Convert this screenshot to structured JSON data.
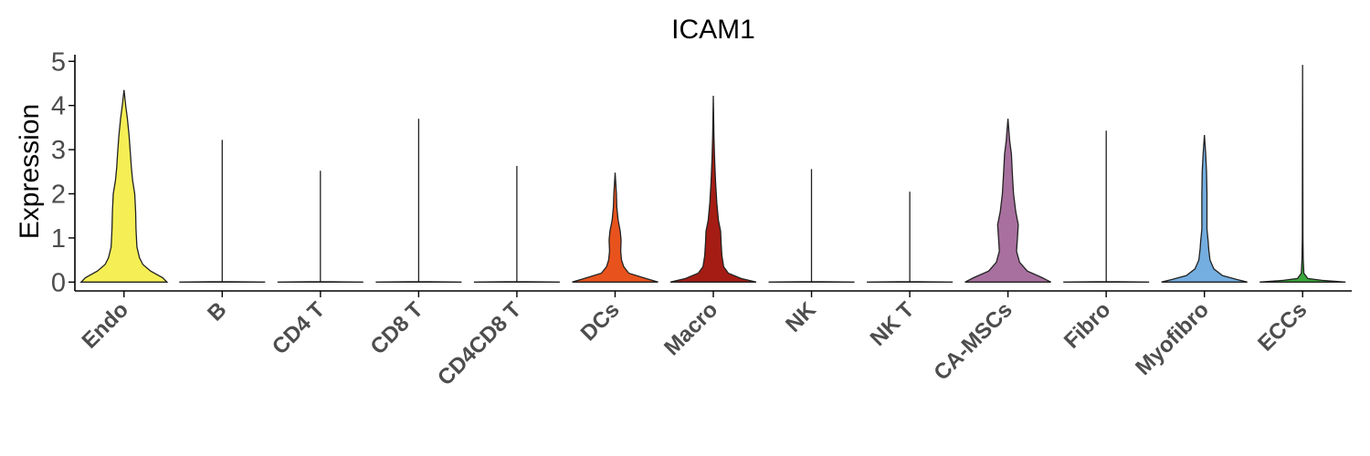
{
  "chart_data": {
    "type": "violin",
    "title": "ICAM1",
    "xlabel": "",
    "ylabel": "Expression",
    "ylim": [
      -0.2,
      5.15
    ],
    "yticks": [
      "0",
      "1",
      "2",
      "3",
      "4",
      "5"
    ],
    "grid": false,
    "legend": "none",
    "categories": [
      "Endo",
      "B",
      "CD4 T",
      "CD8 T",
      "CD4CD8 T",
      "DCs",
      "Macro",
      "NK",
      "NK T",
      "CA-MSCs",
      "Fibro",
      "Myofibro",
      "ECCs"
    ],
    "series": [
      {
        "max": 4.35,
        "color": "#f5ef55",
        "profile": [
          [
            0,
            1.0
          ],
          [
            0.1,
            0.9
          ],
          [
            0.25,
            0.62
          ],
          [
            0.4,
            0.44
          ],
          [
            0.55,
            0.36
          ],
          [
            0.8,
            0.3
          ],
          [
            1.2,
            0.28
          ],
          [
            1.6,
            0.27
          ],
          [
            2.0,
            0.25
          ],
          [
            2.3,
            0.2
          ],
          [
            2.6,
            0.17
          ],
          [
            2.9,
            0.15
          ],
          [
            3.3,
            0.12
          ],
          [
            3.7,
            0.08
          ],
          [
            4.0,
            0.04
          ],
          [
            4.35,
            0.0
          ]
        ]
      },
      {
        "max": 3.22,
        "color": "#999999",
        "profile": [
          [
            0,
            1.0
          ],
          [
            0.01,
            0.0
          ],
          [
            3.22,
            0.0
          ]
        ]
      },
      {
        "max": 2.52,
        "color": "#999999",
        "profile": [
          [
            0,
            1.0
          ],
          [
            0.01,
            0.0
          ],
          [
            2.52,
            0.0
          ]
        ]
      },
      {
        "max": 3.7,
        "color": "#999999",
        "profile": [
          [
            0,
            1.0
          ],
          [
            0.01,
            0.0
          ],
          [
            3.7,
            0.0
          ]
        ]
      },
      {
        "max": 2.63,
        "color": "#999999",
        "profile": [
          [
            0,
            1.0
          ],
          [
            0.01,
            0.0
          ],
          [
            2.63,
            0.0
          ]
        ]
      },
      {
        "max": 2.48,
        "color": "#e8531d",
        "profile": [
          [
            0,
            1.0
          ],
          [
            0.08,
            0.72
          ],
          [
            0.2,
            0.32
          ],
          [
            0.35,
            0.2
          ],
          [
            0.5,
            0.15
          ],
          [
            0.7,
            0.13
          ],
          [
            0.95,
            0.14
          ],
          [
            1.15,
            0.12
          ],
          [
            1.4,
            0.07
          ],
          [
            1.7,
            0.04
          ],
          [
            2.0,
            0.03
          ],
          [
            2.48,
            0.0
          ]
        ]
      },
      {
        "max": 4.22,
        "color": "#a51c14",
        "profile": [
          [
            0,
            1.0
          ],
          [
            0.08,
            0.65
          ],
          [
            0.2,
            0.35
          ],
          [
            0.35,
            0.24
          ],
          [
            0.6,
            0.2
          ],
          [
            0.9,
            0.18
          ],
          [
            1.15,
            0.17
          ],
          [
            1.4,
            0.12
          ],
          [
            1.8,
            0.08
          ],
          [
            2.3,
            0.05
          ],
          [
            2.8,
            0.03
          ],
          [
            3.3,
            0.015
          ],
          [
            4.22,
            0.0
          ]
        ]
      },
      {
        "max": 2.56,
        "color": "#999999",
        "profile": [
          [
            0,
            1.0
          ],
          [
            0.01,
            0.0
          ],
          [
            2.56,
            0.0
          ]
        ]
      },
      {
        "max": 2.05,
        "color": "#999999",
        "profile": [
          [
            0,
            1.0
          ],
          [
            0.01,
            0.0
          ],
          [
            2.05,
            0.0
          ]
        ]
      },
      {
        "max": 3.7,
        "color": "#a8709e",
        "profile": [
          [
            0,
            1.0
          ],
          [
            0.1,
            0.8
          ],
          [
            0.25,
            0.45
          ],
          [
            0.45,
            0.27
          ],
          [
            0.7,
            0.2
          ],
          [
            1.0,
            0.22
          ],
          [
            1.3,
            0.24
          ],
          [
            1.6,
            0.18
          ],
          [
            2.0,
            0.13
          ],
          [
            2.5,
            0.1
          ],
          [
            2.9,
            0.08
          ],
          [
            3.2,
            0.04
          ],
          [
            3.7,
            0.0
          ]
        ]
      },
      {
        "max": 3.43,
        "color": "#999999",
        "profile": [
          [
            0,
            1.0
          ],
          [
            0.01,
            0.0
          ],
          [
            3.43,
            0.0
          ]
        ]
      },
      {
        "max": 3.33,
        "color": "#74aee0",
        "profile": [
          [
            0,
            1.0
          ],
          [
            0.06,
            0.75
          ],
          [
            0.15,
            0.42
          ],
          [
            0.3,
            0.22
          ],
          [
            0.5,
            0.13
          ],
          [
            0.75,
            0.1
          ],
          [
            0.9,
            0.09
          ],
          [
            1.2,
            0.06
          ],
          [
            1.6,
            0.06
          ],
          [
            2.0,
            0.06
          ],
          [
            2.5,
            0.05
          ],
          [
            2.9,
            0.03
          ],
          [
            3.33,
            0.0
          ]
        ]
      },
      {
        "max": 4.92,
        "color": "#3aa83a",
        "profile": [
          [
            0,
            1.0
          ],
          [
            0.04,
            0.45
          ],
          [
            0.08,
            0.12
          ],
          [
            0.2,
            0.03
          ],
          [
            0.5,
            0.015
          ],
          [
            1.0,
            0.008
          ],
          [
            4.92,
            0.0
          ]
        ]
      }
    ]
  }
}
